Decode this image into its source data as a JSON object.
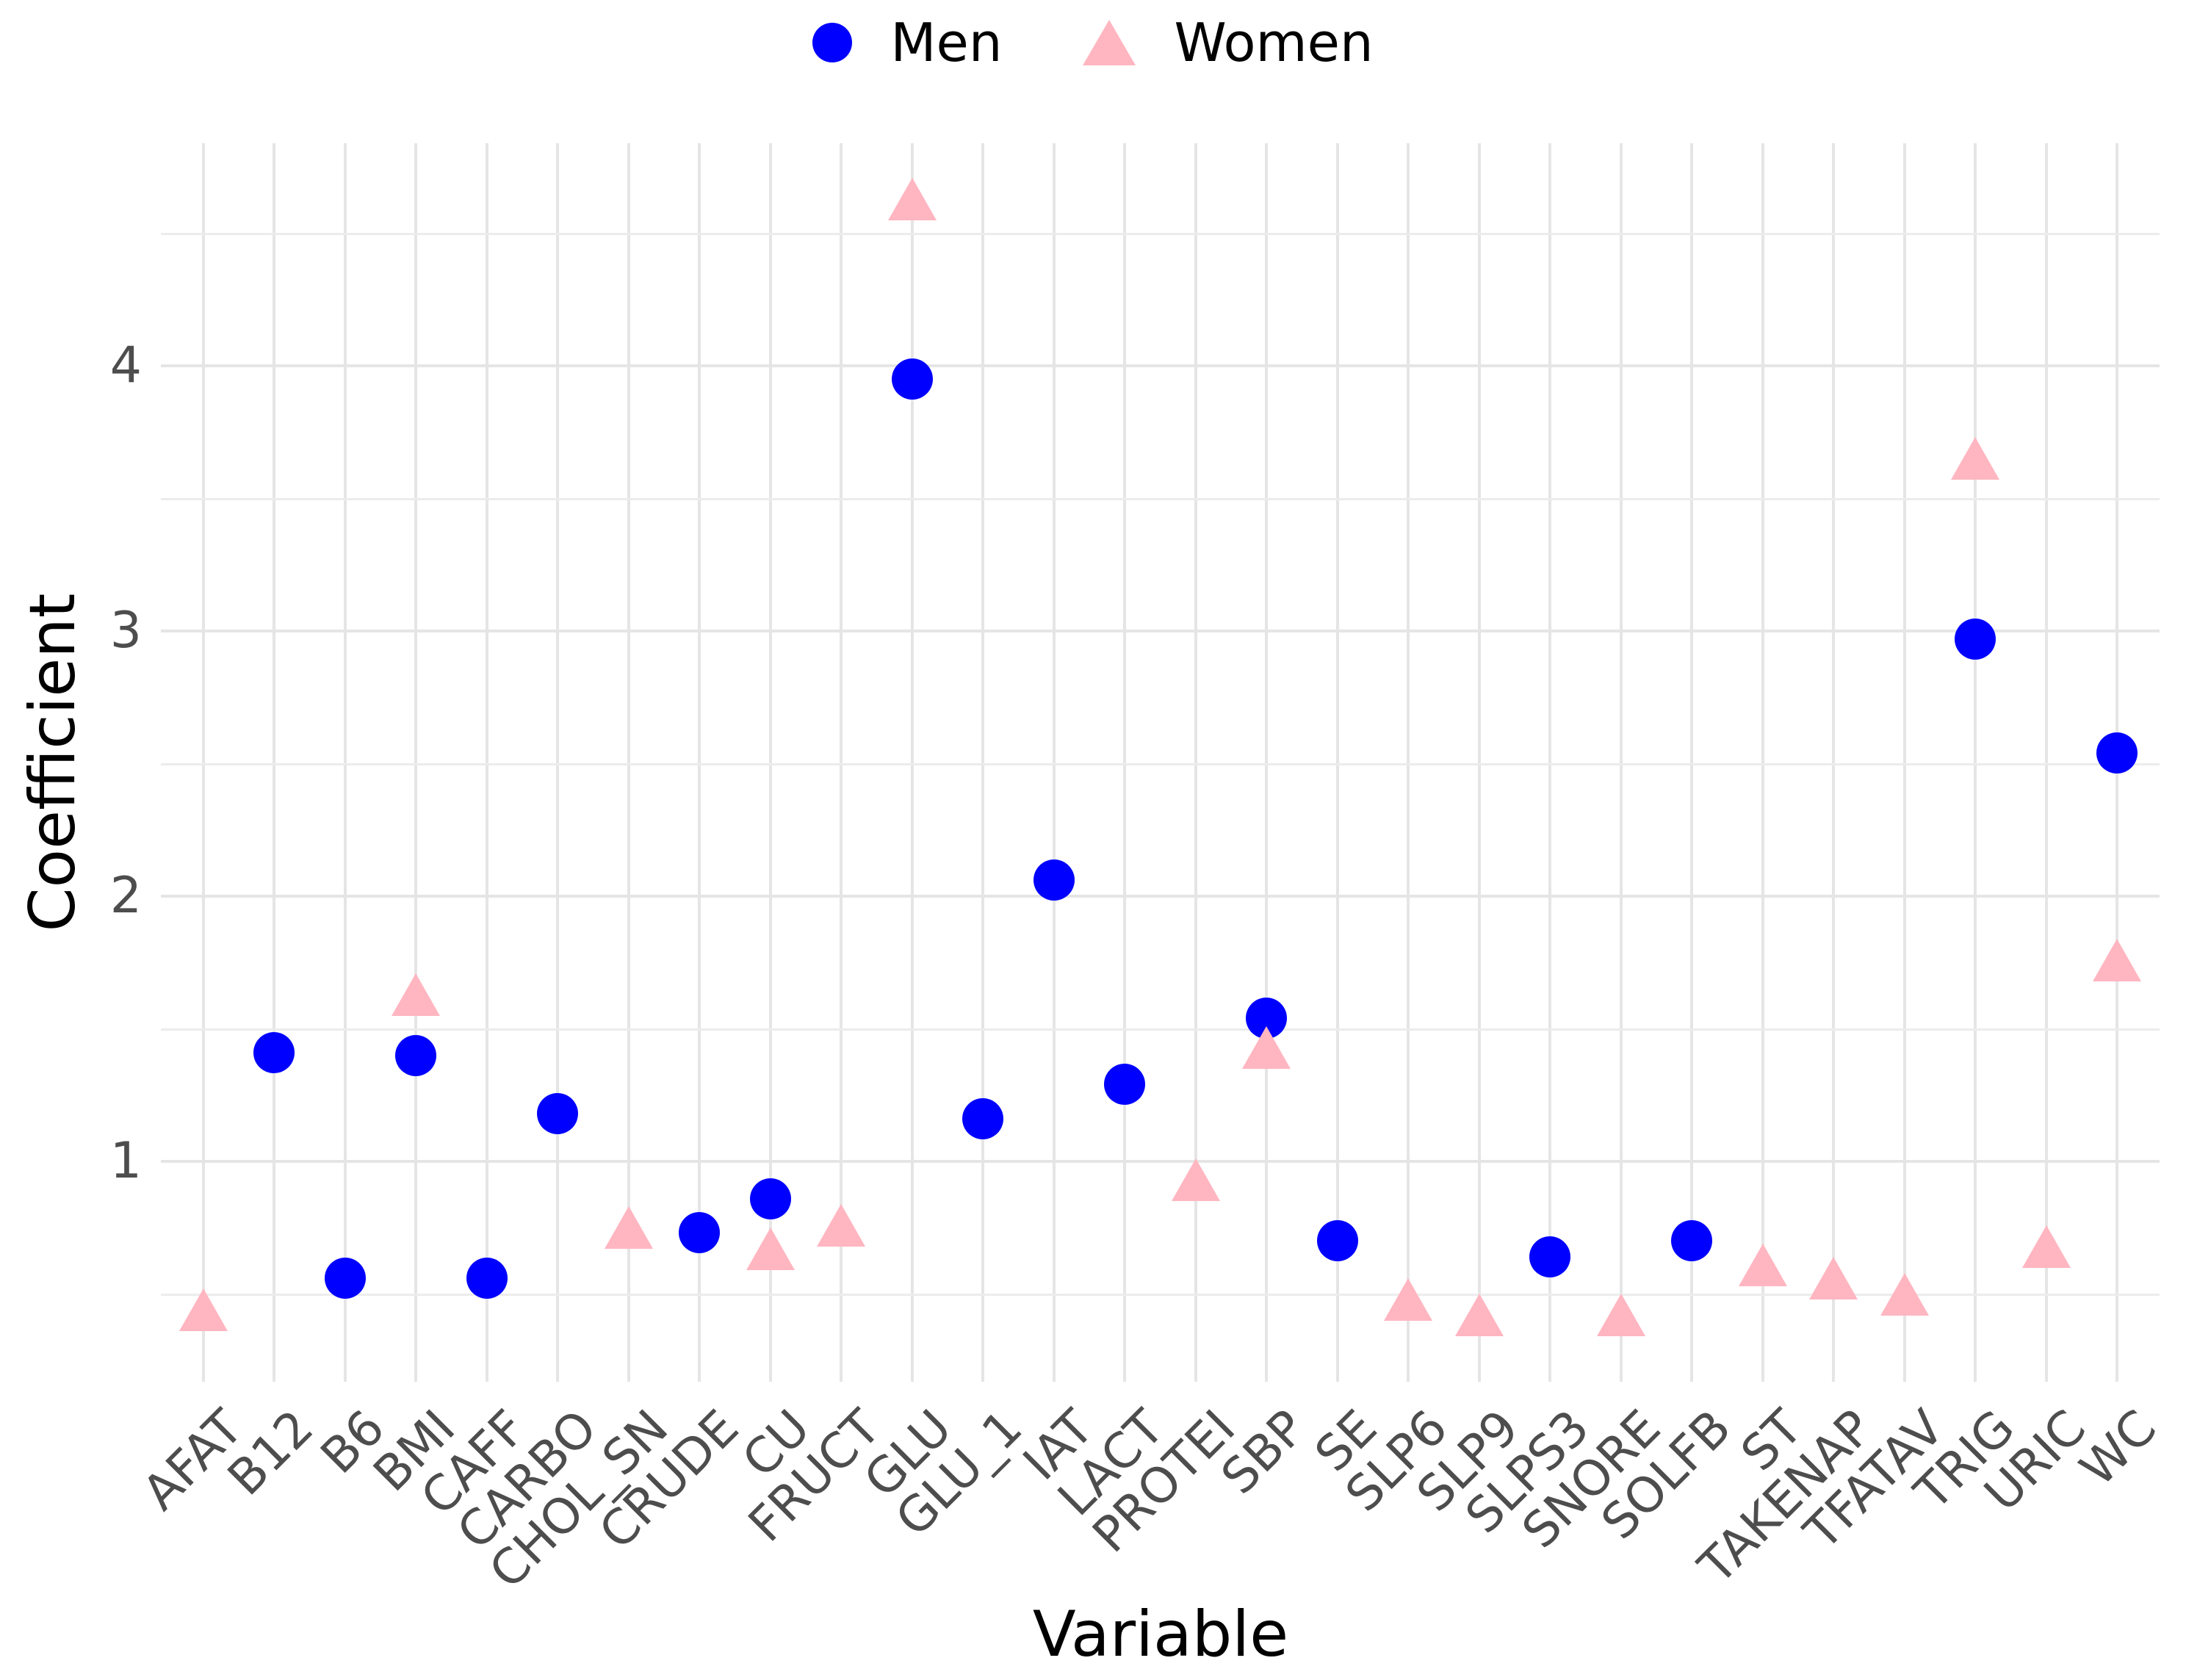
{
  "legend": {
    "position": "top-center",
    "men_label": "Men",
    "women_label": "Women"
  },
  "axes": {
    "x_title": "Variable",
    "y_title": "Coefficient",
    "y_tick_labels": [
      "1",
      "2",
      "3",
      "4"
    ],
    "x_tick_angle_degrees": 45
  },
  "colors": {
    "men": "#0000FF",
    "women": "#FFB6C1",
    "grid_major": "#E5E5E5",
    "grid_minor": "#ECECEC",
    "tick_text": "#4D4D4D",
    "axis_title_text": "#000000",
    "background": "#FFFFFF"
  },
  "chart_data": {
    "type": "scatter",
    "title": "",
    "xlabel": "Variable",
    "ylabel": "Coefficient",
    "grid": "on",
    "legend_position": "top-center",
    "ylim": [
      0.16,
      4.84
    ],
    "yticks": [
      1,
      2,
      3,
      4
    ],
    "ytick_minor": [
      0.5,
      1.5,
      2.5,
      3.5,
      4.5
    ],
    "categories": [
      "AFAT",
      "B12",
      "B6",
      "BMI",
      "CAFF",
      "CARBO",
      "CHOL_SN",
      "CRUDE",
      "CU",
      "FRUCT",
      "GLU",
      "GLU_1",
      "IAT",
      "LACT",
      "PROTEI",
      "SBP",
      "SE",
      "SLP6",
      "SLP9",
      "SLPS3",
      "SNORE",
      "SOLFB",
      "ST",
      "TAKENAP",
      "TFATAV",
      "TRIG",
      "URIC",
      "WC"
    ],
    "series": [
      {
        "name": "Men",
        "marker": "circle",
        "color": "#0000FF",
        "values": [
          null,
          1.41,
          0.56,
          1.4,
          0.56,
          1.18,
          null,
          0.73,
          0.86,
          null,
          3.95,
          1.16,
          2.06,
          1.29,
          null,
          1.54,
          0.7,
          null,
          null,
          0.64,
          null,
          0.7,
          null,
          null,
          null,
          2.97,
          null,
          2.54
        ]
      },
      {
        "name": "Women",
        "marker": "triangle",
        "color": "#FFB6C1",
        "values": [
          0.44,
          null,
          null,
          1.63,
          null,
          null,
          0.75,
          null,
          0.67,
          0.76,
          4.63,
          null,
          null,
          null,
          0.93,
          1.43,
          null,
          0.48,
          0.42,
          null,
          0.42,
          null,
          0.61,
          0.56,
          0.5,
          3.65,
          0.68,
          1.76
        ]
      }
    ]
  }
}
